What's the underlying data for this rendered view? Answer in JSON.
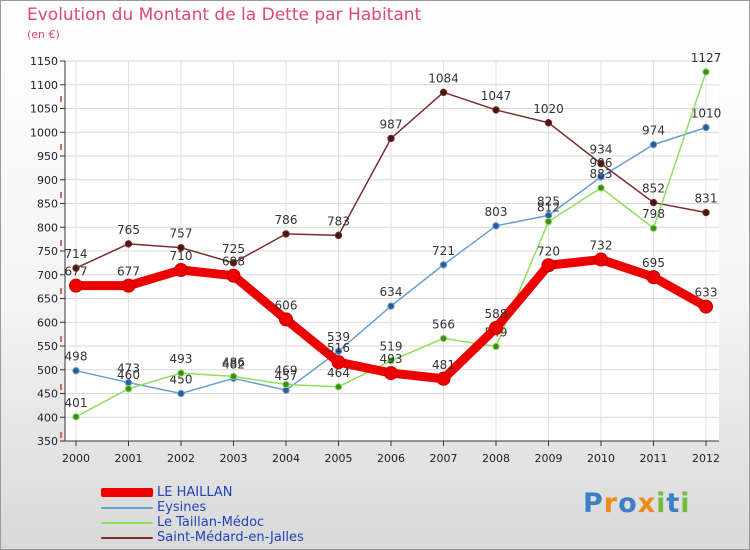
{
  "title": "Evolution du Montant de la Dette par Habitant",
  "subtitle": "(en €)",
  "logo": {
    "text": "Proxiti"
  },
  "chart_data": {
    "type": "line",
    "categories": [
      "2000",
      "2001",
      "2002",
      "2003",
      "2004",
      "2005",
      "2006",
      "2007",
      "2008",
      "2009",
      "2010",
      "2011",
      "2012"
    ],
    "ylim": [
      350,
      1150
    ],
    "yticks": [
      350,
      400,
      450,
      500,
      550,
      600,
      650,
      700,
      750,
      800,
      850,
      900,
      950,
      1000,
      1050,
      1100,
      1150
    ],
    "grid": true,
    "legend_position": "bottom-left",
    "series": [
      {
        "name": "LE HAILLAN",
        "color": "#ee0000",
        "width": 9,
        "values": [
          677,
          677,
          710,
          698,
          606,
          516,
          493,
          481,
          588,
          720,
          732,
          695,
          633
        ]
      },
      {
        "name": "Eysines",
        "color": "#6a9fd4",
        "width": 1.5,
        "values": [
          498,
          473,
          450,
          482,
          457,
          539,
          634,
          721,
          803,
          825,
          906,
          974,
          1010
        ]
      },
      {
        "name": "Le Taillan-Médoc",
        "color": "#8ee05c",
        "width": 1.5,
        "values": [
          401,
          460,
          493,
          486,
          469,
          464,
          519,
          566,
          549,
          812,
          883,
          798,
          1127
        ]
      },
      {
        "name": "Saint-Médard-en-Jalles",
        "color": "#7a2e2e",
        "width": 1.5,
        "values": [
          714,
          765,
          757,
          725,
          786,
          783,
          987,
          1084,
          1047,
          1020,
          934,
          852,
          831
        ]
      }
    ]
  }
}
